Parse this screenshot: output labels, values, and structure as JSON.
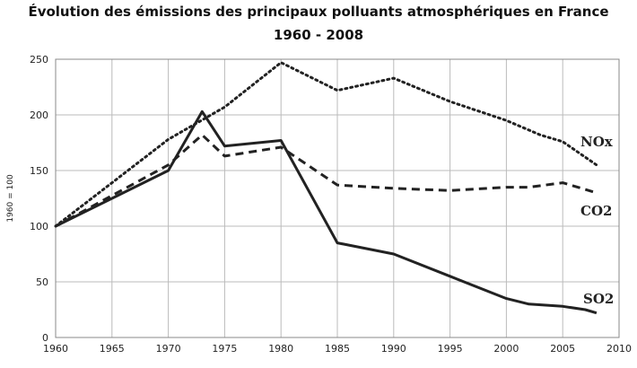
{
  "chart_data": {
    "type": "line",
    "title": "Évolution des émissions des principaux polluants atmosphériques en France",
    "subtitle": "1960 - 2008",
    "xlabel": "",
    "ylabel": "1960 = 100",
    "xlim": [
      1960,
      2010
    ],
    "ylim": [
      0,
      250
    ],
    "x_ticks": [
      "1960",
      "1965",
      "1970",
      "1975",
      "1980",
      "1985",
      "1990",
      "1995",
      "2000",
      "2005",
      "2010"
    ],
    "y_ticks": [
      "0",
      "50",
      "100",
      "150",
      "200",
      "250"
    ],
    "grid": true,
    "series": [
      {
        "name": "NOx",
        "style": "dotted",
        "x": [
          1960,
          1970,
          1975,
          1980,
          1985,
          1990,
          1995,
          2000,
          2003,
          2005,
          2008
        ],
        "values": [
          100,
          178,
          207,
          247,
          222,
          233,
          212,
          195,
          182,
          176,
          155
        ]
      },
      {
        "name": "CO2",
        "style": "dashed",
        "x": [
          1960,
          1970,
          1973,
          1975,
          1980,
          1985,
          1990,
          1995,
          2000,
          2002,
          2005,
          2008
        ],
        "values": [
          100,
          155,
          182,
          163,
          171,
          137,
          134,
          132,
          135,
          135,
          139,
          130
        ]
      },
      {
        "name": "SO2",
        "style": "solid",
        "x": [
          1960,
          1970,
          1973,
          1975,
          1980,
          1985,
          1990,
          1995,
          2000,
          2002,
          2005,
          2007,
          2008
        ],
        "values": [
          100,
          150,
          203,
          172,
          177,
          85,
          75,
          55,
          35,
          30,
          28,
          25,
          22
        ]
      }
    ],
    "colors": {
      "line": "#222222",
      "grid": "#bbbbbb"
    }
  }
}
